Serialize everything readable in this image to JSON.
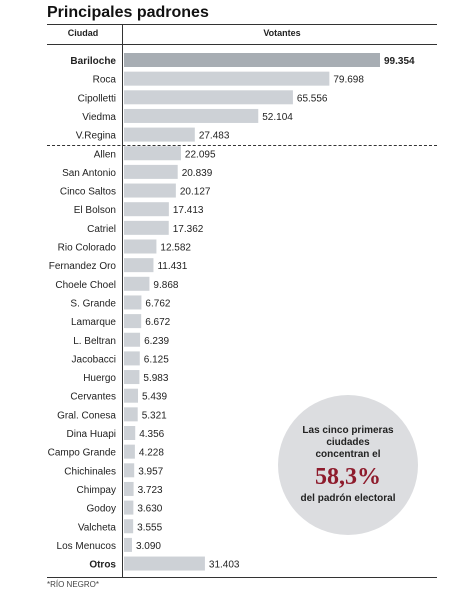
{
  "title": "Principales padrones",
  "headers": {
    "city": "Ciudad",
    "voters": "Votantes"
  },
  "note": "*RÍO NEGRO*",
  "callout": {
    "line1": "Las cinco primeras ciudades concentran el",
    "big": "58,3%",
    "line2": "del padrón electoral"
  },
  "colors": {
    "bar": "#cdd1d6",
    "bar_highlight": "#a7adb3",
    "accent": "#8e1b2c"
  },
  "chart_data": {
    "type": "bar",
    "orientation": "horizontal",
    "title": "Principales padrones",
    "categories": [
      "Bariloche",
      "Roca",
      "Cipolletti",
      "Viedma",
      "V.Regina",
      "Allen",
      "San Antonio",
      "Cinco Saltos",
      "El Bolson",
      "Catriel",
      "Rio Colorado",
      "Fernandez Oro",
      "Choele Choel",
      "S. Grande",
      "Lamarque",
      "L. Beltran",
      "Jacobacci",
      "Huergo",
      "Cervantes",
      "Gral. Conesa",
      "Dina Huapi",
      "Campo Grande",
      "Chichinales",
      "Chimpay",
      "Godoy",
      "Valcheta",
      "Los Menucos",
      "Otros"
    ],
    "values": [
      99354,
      79698,
      65556,
      52104,
      27483,
      22095,
      20839,
      20127,
      17413,
      17362,
      12582,
      11431,
      9868,
      6762,
      6672,
      6239,
      6125,
      5983,
      5439,
      5321,
      4356,
      4228,
      3957,
      3723,
      3630,
      3555,
      3090,
      31403
    ],
    "labels": [
      "99.354",
      "79.698",
      "65.556",
      "52.104",
      "27.483",
      "22.095",
      "20.839",
      "20.127",
      "17.413",
      "17.362",
      "12.582",
      "11.431",
      "9.868",
      "6.762",
      "6.672",
      "6.239",
      "6.125",
      "5.983",
      "5.439",
      "5.321",
      "4.356",
      "4.228",
      "3.957",
      "3.723",
      "3.630",
      "3.555",
      "3.090",
      "31.403"
    ],
    "bold_categories": [
      "Bariloche",
      "Otros"
    ],
    "highlight": "Bariloche",
    "xlim": [
      0,
      99354
    ]
  }
}
